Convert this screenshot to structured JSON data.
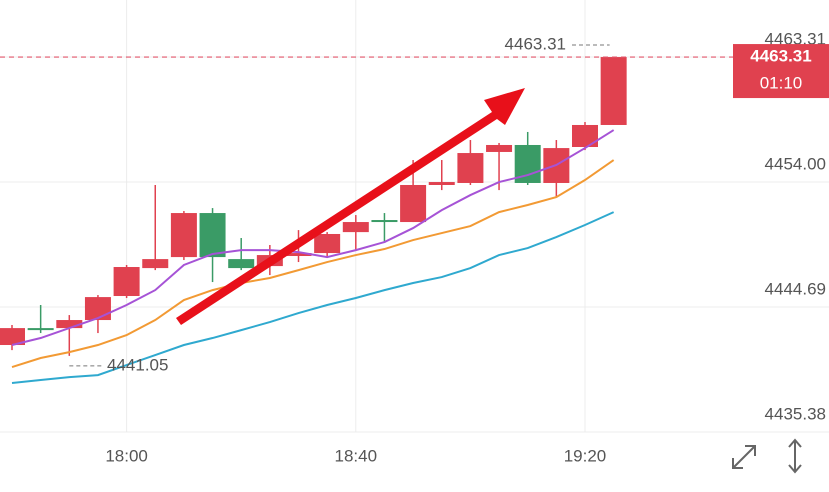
{
  "chart_data": {
    "type": "candlestick",
    "categories": [
      null,
      null,
      null,
      null,
      "18:00",
      null,
      null,
      null,
      null,
      null,
      null,
      null,
      "18:40",
      null,
      null,
      null,
      null,
      null,
      null,
      null,
      "19:20",
      null
    ],
    "open": [
      4441.86,
      4443.12,
      4443.12,
      4443.72,
      4445.51,
      4447.59,
      4448.41,
      4451.69,
      4448.26,
      4447.74,
      4448.49,
      4448.71,
      4450.27,
      4451.17,
      4451.02,
      4453.78,
      4453.93,
      4456.24,
      4456.76,
      4453.93,
      4456.61,
      4458.25
    ],
    "high": [
      4443.35,
      4444.84,
      4444.09,
      4445.58,
      4447.82,
      4453.78,
      4451.84,
      4452.06,
      4449.83,
      4449.31,
      4450.42,
      4450.27,
      4451.54,
      4451.69,
      4455.64,
      4455.64,
      4457.13,
      4456.91,
      4457.73,
      4457.13,
      4458.47,
      4463.31
    ],
    "low": [
      4441.48,
      4442.75,
      4441.05,
      4442.75,
      4445.36,
      4447.44,
      4448.19,
      4446.55,
      4447.44,
      4447.07,
      4448.04,
      4448.49,
      4448.93,
      4449.46,
      4451.02,
      4453.4,
      4453.78,
      4453.4,
      4453.78,
      4452.88,
      4456.38,
      4458.25
    ],
    "close": [
      4443.12,
      4442.97,
      4443.72,
      4445.43,
      4447.67,
      4448.26,
      4451.69,
      4448.41,
      4447.59,
      4448.56,
      4448.71,
      4450.13,
      4451.02,
      4451.02,
      4453.78,
      4454.0,
      4456.16,
      4456.76,
      4453.93,
      4456.53,
      4458.25,
      4463.31
    ],
    "up_color": "#e0414f",
    "down_color": "#3a9b66",
    "series": [
      {
        "color": "#a653d6",
        "values": [
          4441.86,
          4442.38,
          4443.12,
          4443.87,
          4444.84,
          4445.95,
          4447.82,
          4448.64,
          4448.93,
          4448.93,
          4448.78,
          4448.41,
          4448.93,
          4449.53,
          4450.57,
          4451.91,
          4453.03,
          4454.0,
          4454.52,
          4455.27,
          4456.53,
          4457.87
        ]
      },
      {
        "color": "#f29a34",
        "values": [
          4440.22,
          4440.89,
          4441.33,
          4441.86,
          4442.6,
          4443.72,
          4445.21,
          4445.95,
          4446.48,
          4446.85,
          4447.44,
          4448.04,
          4448.56,
          4449.01,
          4449.68,
          4450.2,
          4450.72,
          4451.76,
          4452.29,
          4452.88,
          4454.15,
          4455.64
        ]
      },
      {
        "color": "#2fa9cf",
        "values": [
          4439.03,
          4439.25,
          4439.47,
          4439.62,
          4440.37,
          4441.11,
          4441.86,
          4442.38,
          4442.97,
          4443.57,
          4444.24,
          4444.84,
          4445.36,
          4445.95,
          4446.48,
          4446.92,
          4447.59,
          4448.56,
          4449.08,
          4449.9,
          4450.8,
          4451.76
        ]
      }
    ],
    "ylim": [
      4435.38,
      4467.56
    ],
    "yticks": [
      4435.38,
      4444.69,
      {
        "value": 4454,
        "label": "4454.00"
      },
      4463.31
    ],
    "last_price": 4463.31,
    "countdown": "01:10",
    "max_marker": 4463.31,
    "min_marker": 4441.05
  }
}
